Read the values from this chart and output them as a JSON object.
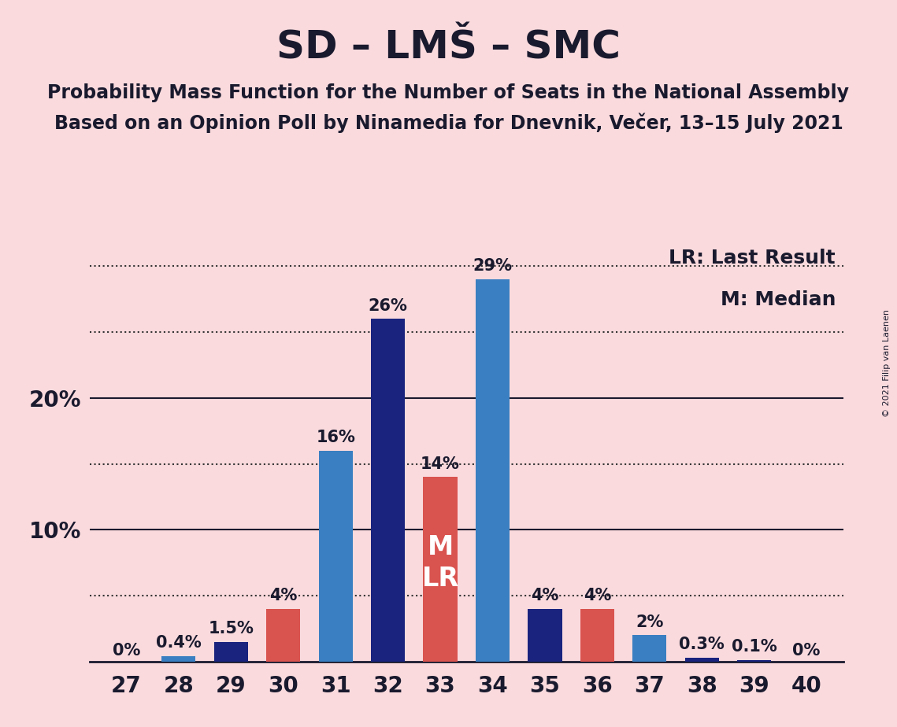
{
  "title": "SD – LMŠ – SMC",
  "subtitle1": "Probability Mass Function for the Number of Seats in the National Assembly",
  "subtitle2": "Based on an Opinion Poll by Ninamedia for Dnevnik, Večer, 13–15 July 2021",
  "copyright": "© 2021 Filip van Laenen",
  "legend_lr": "LR: Last Result",
  "legend_m": "M: Median",
  "seats": [
    27,
    28,
    29,
    30,
    31,
    32,
    33,
    34,
    35,
    36,
    37,
    38,
    39,
    40
  ],
  "values": [
    0.0,
    0.4,
    1.5,
    4.0,
    16.0,
    26.0,
    14.0,
    29.0,
    4.0,
    4.0,
    2.0,
    0.3,
    0.1,
    0.0
  ],
  "labels": [
    "0%",
    "0.4%",
    "1.5%",
    "4%",
    "16%",
    "26%",
    "14%",
    "29%",
    "4%",
    "4%",
    "2%",
    "0.3%",
    "0.1%",
    "0%"
  ],
  "bar_colors": [
    "#3a7fc1",
    "#3a7fc1",
    "#1a237e",
    "#d9534f",
    "#3a7fc1",
    "#1a237e",
    "#d9534f",
    "#3a7fc1",
    "#1a237e",
    "#d9534f",
    "#3a7fc1",
    "#1a237e",
    "#1a237e",
    "#1a237e"
  ],
  "median_seat": 33,
  "lr_seat": 33,
  "background_color": "#fadadd",
  "bar_width": 0.65,
  "ylim_max": 32,
  "grid_lines": [
    5,
    10,
    15,
    20,
    25,
    30
  ],
  "solid_grid_lines": [
    10,
    20
  ],
  "dotted_grid_lines": [
    5,
    15,
    25,
    30
  ],
  "ytick_positions": [
    10,
    20
  ],
  "ytick_labels": [
    "10%",
    "20%"
  ],
  "grid_color": "#333333",
  "axis_color": "#1a1a2e",
  "title_fontsize": 36,
  "subtitle_fontsize": 17,
  "label_fontsize": 15,
  "tick_fontsize": 20,
  "legend_fontsize": 18,
  "ml_fontsize": 24
}
